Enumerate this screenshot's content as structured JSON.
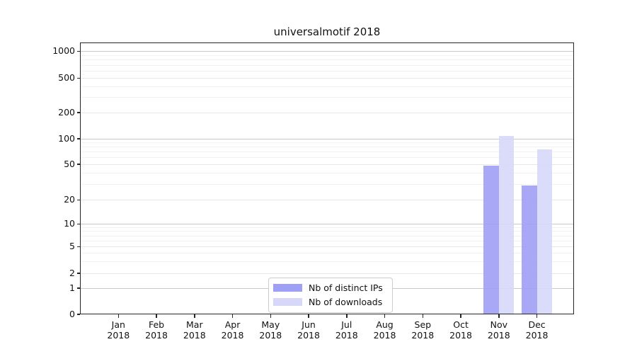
{
  "chart_data": {
    "type": "bar",
    "title": "universalmotif 2018",
    "categories": [
      "Jan",
      "Feb",
      "Mar",
      "Apr",
      "May",
      "Jun",
      "Jul",
      "Aug",
      "Sep",
      "Oct",
      "Nov",
      "Dec"
    ],
    "category_sublabel": "2018",
    "series": [
      {
        "name": "Nb of distinct IPs",
        "color": "#9f9ff6",
        "values": [
          0,
          0,
          0,
          0,
          0,
          0,
          0,
          0,
          0,
          0,
          48,
          29
        ]
      },
      {
        "name": "Nb of downloads",
        "color": "#d7d7fa",
        "values": [
          0,
          0,
          0,
          0,
          0,
          0,
          0,
          0,
          0,
          0,
          107,
          74
        ]
      }
    ],
    "yticks": [
      0,
      1,
      2,
      5,
      10,
      20,
      50,
      100,
      200,
      500,
      1000
    ],
    "ylim": [
      0,
      1100
    ],
    "yscale": "symlog",
    "grid": "horizontal major and log-minor gridlines",
    "legend_position": "inside lower-center",
    "xlabel": "",
    "ylabel": ""
  }
}
